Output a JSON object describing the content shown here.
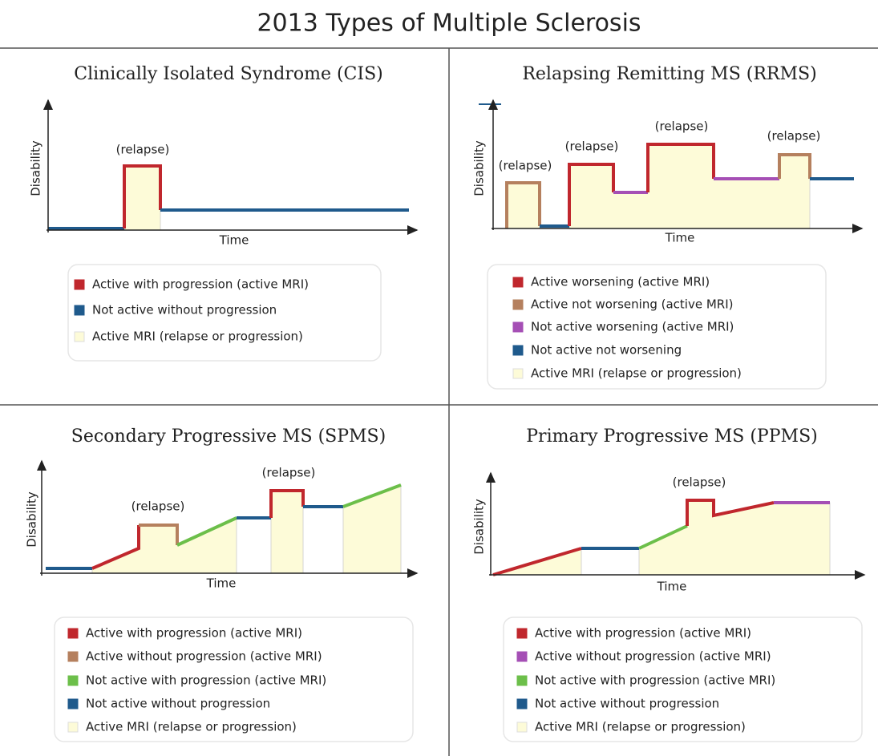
{
  "title": "2013 Types of Multiple Sclerosis",
  "panels": [
    {
      "title": "Clinically Isolated Syndrome (CIS)",
      "y_label": "Disability",
      "x_label": "Time",
      "relapse_labels": [
        "(relapse)"
      ],
      "legend": [
        "Active with progression (active MRI)",
        "Not active without progression",
        "Active MRI (relapse or progression)"
      ]
    },
    {
      "title": "Relapsing Remitting MS (RRMS)",
      "y_label": "Disability",
      "x_label": "Time",
      "relapse_labels": [
        "(relapse)",
        "(relapse)",
        "(relapse)",
        "(relapse)"
      ],
      "legend": [
        "Active worsening (active MRI)",
        "Active not worsening (active MRI)",
        "Not active worsening (active MRI)",
        "Not active not worsening",
        "Active MRI (relapse or progression)"
      ]
    },
    {
      "title": "Secondary Progressive MS (SPMS)",
      "y_label": "Disability",
      "x_label": "Time",
      "relapse_labels": [
        "(relapse)",
        "(relapse)"
      ],
      "legend": [
        "Active with progression (active MRI)",
        "Active without progression (active MRI)",
        "Not active with progression (active MRI)",
        "Not active without progression",
        "Active MRI (relapse or progression)"
      ]
    },
    {
      "title": "Primary Progressive MS (PPMS)",
      "y_label": "Disability",
      "x_label": "Time",
      "relapse_labels": [
        "(relapse)"
      ],
      "legend": [
        "Active with progression (active MRI)",
        "Active without progression (active MRI)",
        "Not active with progression (active MRI)",
        "Not active without progression",
        "Active MRI (relapse or progression)"
      ]
    }
  ]
}
